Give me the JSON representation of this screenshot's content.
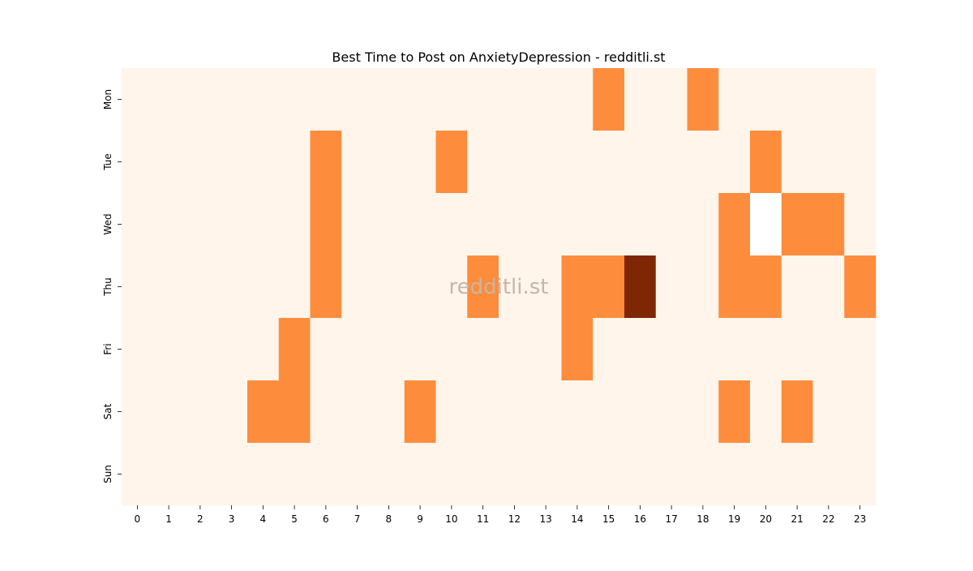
{
  "chart_data": {
    "type": "heatmap",
    "title": "Best Time to Post on AnxietyDepression - redditli.st",
    "watermark": "redditli.st",
    "xlabel": "",
    "ylabel": "",
    "x_categories": [
      "0",
      "1",
      "2",
      "3",
      "4",
      "5",
      "6",
      "7",
      "8",
      "9",
      "10",
      "11",
      "12",
      "13",
      "14",
      "15",
      "16",
      "17",
      "18",
      "19",
      "20",
      "21",
      "22",
      "23"
    ],
    "y_categories": [
      "Mon",
      "Tue",
      "Wed",
      "Thu",
      "Fri",
      "Sat",
      "Sun"
    ],
    "values": [
      [
        0,
        0,
        0,
        0,
        0,
        0,
        0,
        0,
        0,
        0,
        0,
        0,
        0,
        0,
        0,
        1,
        0,
        0,
        1,
        0,
        0,
        0,
        0,
        0
      ],
      [
        0,
        0,
        0,
        0,
        0,
        0,
        1,
        0,
        0,
        0,
        1,
        0,
        0,
        0,
        0,
        0,
        0,
        0,
        0,
        0,
        1,
        0,
        0,
        0
      ],
      [
        0,
        0,
        0,
        0,
        0,
        0,
        1,
        0,
        0,
        0,
        0,
        0,
        0,
        0,
        0,
        0,
        0,
        0,
        0,
        1,
        null,
        1,
        1,
        0
      ],
      [
        0,
        0,
        0,
        0,
        0,
        0,
        1,
        0,
        0,
        0,
        0,
        1,
        0,
        0,
        1,
        1,
        2,
        0,
        0,
        1,
        1,
        0,
        0,
        1
      ],
      [
        0,
        0,
        0,
        0,
        0,
        1,
        0,
        0,
        0,
        0,
        0,
        0,
        0,
        0,
        1,
        0,
        0,
        0,
        0,
        0,
        0,
        0,
        0,
        0
      ],
      [
        0,
        0,
        0,
        0,
        1,
        1,
        0,
        0,
        0,
        1,
        0,
        0,
        0,
        0,
        0,
        0,
        0,
        0,
        0,
        1,
        0,
        1,
        0,
        0
      ],
      [
        0,
        0,
        0,
        0,
        0,
        0,
        0,
        0,
        0,
        0,
        0,
        0,
        0,
        0,
        0,
        0,
        0,
        0,
        0,
        0,
        0,
        0,
        0,
        0
      ]
    ],
    "colors": {
      "low": "#fff5eb",
      "mid": "#fd8d3c",
      "high": "#7f2704",
      "missing": "#ffffff",
      "watermark": "#c9b5a6"
    },
    "grid": false,
    "legend": "none"
  }
}
